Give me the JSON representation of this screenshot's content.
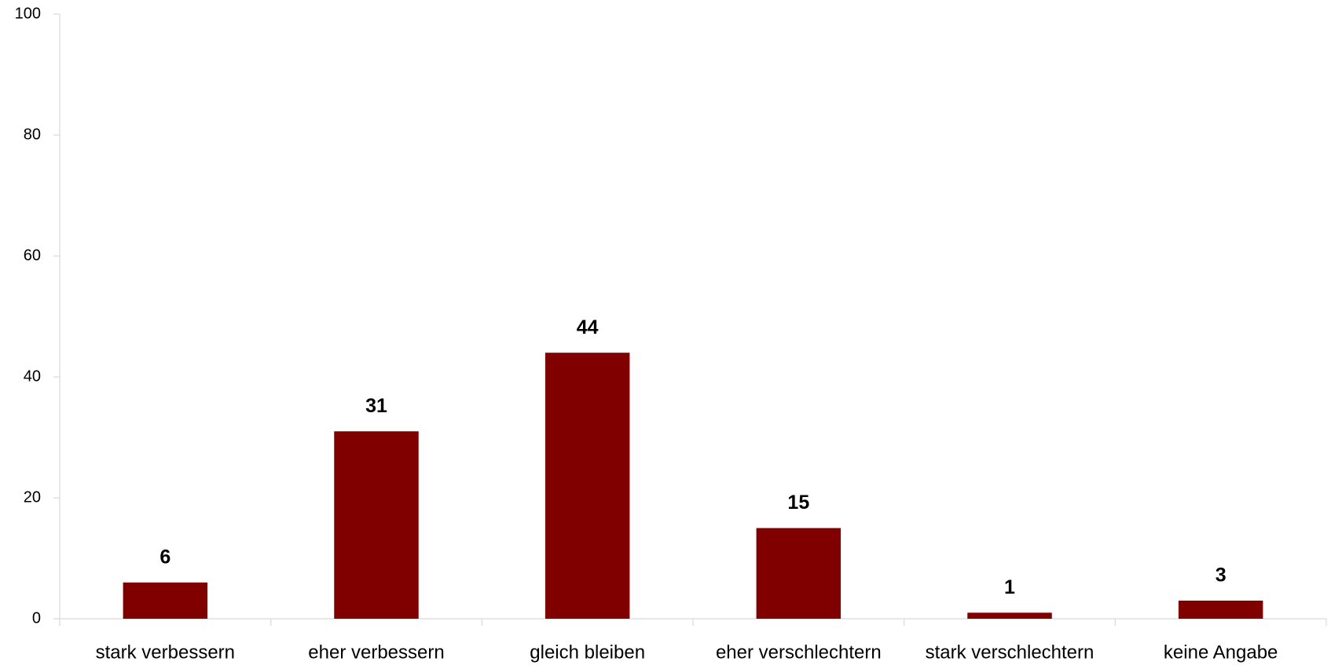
{
  "chart_data": {
    "type": "bar",
    "categories": [
      "stark verbessern",
      "eher verbessern",
      "gleich bleiben",
      "eher verschlechtern",
      "stark verschlechtern",
      "keine Angabe"
    ],
    "values": [
      6,
      31,
      44,
      15,
      1,
      3
    ],
    "color": "#800000",
    "ylim": [
      0,
      100
    ],
    "yticks": [
      0,
      20,
      40,
      60,
      80,
      100
    ],
    "grid": false
  }
}
